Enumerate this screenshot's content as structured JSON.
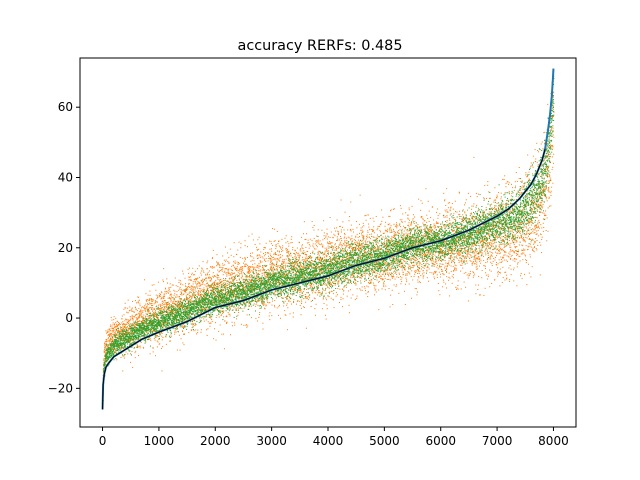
{
  "chart_data": {
    "type": "scatter",
    "title": "accuracy RERFs: 0.485",
    "xlabel": "",
    "ylabel": "",
    "xlim": [
      -400,
      8400
    ],
    "ylim": [
      -31,
      74
    ],
    "xticks": [
      0,
      1000,
      2000,
      3000,
      4000,
      5000,
      6000,
      7000,
      8000
    ],
    "xtick_labels": [
      "0",
      "1000",
      "2000",
      "3000",
      "4000",
      "5000",
      "6000",
      "7000",
      "8000"
    ],
    "yticks": [
      -20,
      0,
      20,
      40,
      60
    ],
    "ytick_labels": [
      "−20",
      "0",
      "20",
      "40",
      "60"
    ],
    "grid": false,
    "series": [
      {
        "kind": "scatter",
        "color": "#ff7f0e",
        "n_points": 8000,
        "center_offset": [
          [
            0,
            6
          ],
          [
            400,
            5
          ],
          [
            2000,
            5
          ],
          [
            4000,
            3
          ],
          [
            5600,
            0
          ],
          [
            6400,
            -3
          ],
          [
            7200,
            -6
          ],
          [
            8000,
            -10
          ]
        ],
        "spread": [
          [
            0,
            5
          ],
          [
            1000,
            8
          ],
          [
            2000,
            9
          ],
          [
            4000,
            10
          ],
          [
            6000,
            10
          ],
          [
            7000,
            12
          ],
          [
            8000,
            16
          ]
        ]
      },
      {
        "kind": "scatter",
        "color": "#2ca02c",
        "n_points": 8000,
        "center_offset": [
          [
            0,
            3
          ],
          [
            1000,
            3
          ],
          [
            3000,
            2
          ],
          [
            5000,
            1
          ],
          [
            6000,
            0
          ],
          [
            7000,
            -2
          ],
          [
            8000,
            -6
          ]
        ],
        "spread": [
          [
            0,
            3
          ],
          [
            2000,
            4
          ],
          [
            4000,
            5
          ],
          [
            6000,
            5
          ],
          [
            7000,
            6
          ],
          [
            8000,
            9
          ]
        ]
      },
      {
        "kind": "line",
        "color": "#1f77b4",
        "x": [
          0,
          10,
          30,
          60,
          100,
          150,
          200,
          300,
          400,
          500,
          700,
          1000,
          1500,
          2000,
          2500,
          3000,
          3500,
          4000,
          4500,
          5000,
          5500,
          6000,
          6500,
          7000,
          7200,
          7400,
          7600,
          7700,
          7800,
          7850,
          7900,
          7940,
          7970,
          7990,
          8000
        ],
        "y": [
          -26,
          -19,
          -16,
          -14,
          -13,
          -12,
          -11,
          -10,
          -9,
          -8,
          -6,
          -4,
          -1,
          3,
          5,
          8,
          10,
          12,
          15,
          17,
          20,
          22,
          25,
          29,
          31,
          34,
          38,
          41,
          45,
          48,
          53,
          58,
          63,
          68,
          71
        ]
      },
      {
        "kind": "line",
        "color": "#000000",
        "x": [
          0,
          10,
          30,
          60,
          100,
          150,
          200,
          300,
          400,
          500,
          700,
          1000,
          1500,
          2000,
          2500,
          3000,
          3500,
          4000,
          4500,
          5000,
          5500,
          6000,
          6500,
          7000,
          7200,
          7400,
          7600,
          7700,
          7800,
          7850
        ],
        "y": [
          -26,
          -19,
          -16,
          -14,
          -13,
          -12,
          -11,
          -10,
          -9,
          -8,
          -6,
          -4,
          -1,
          3,
          5,
          8,
          10,
          12,
          15,
          17,
          20,
          22,
          25,
          29,
          31,
          34,
          38,
          41,
          45,
          48
        ]
      }
    ]
  }
}
